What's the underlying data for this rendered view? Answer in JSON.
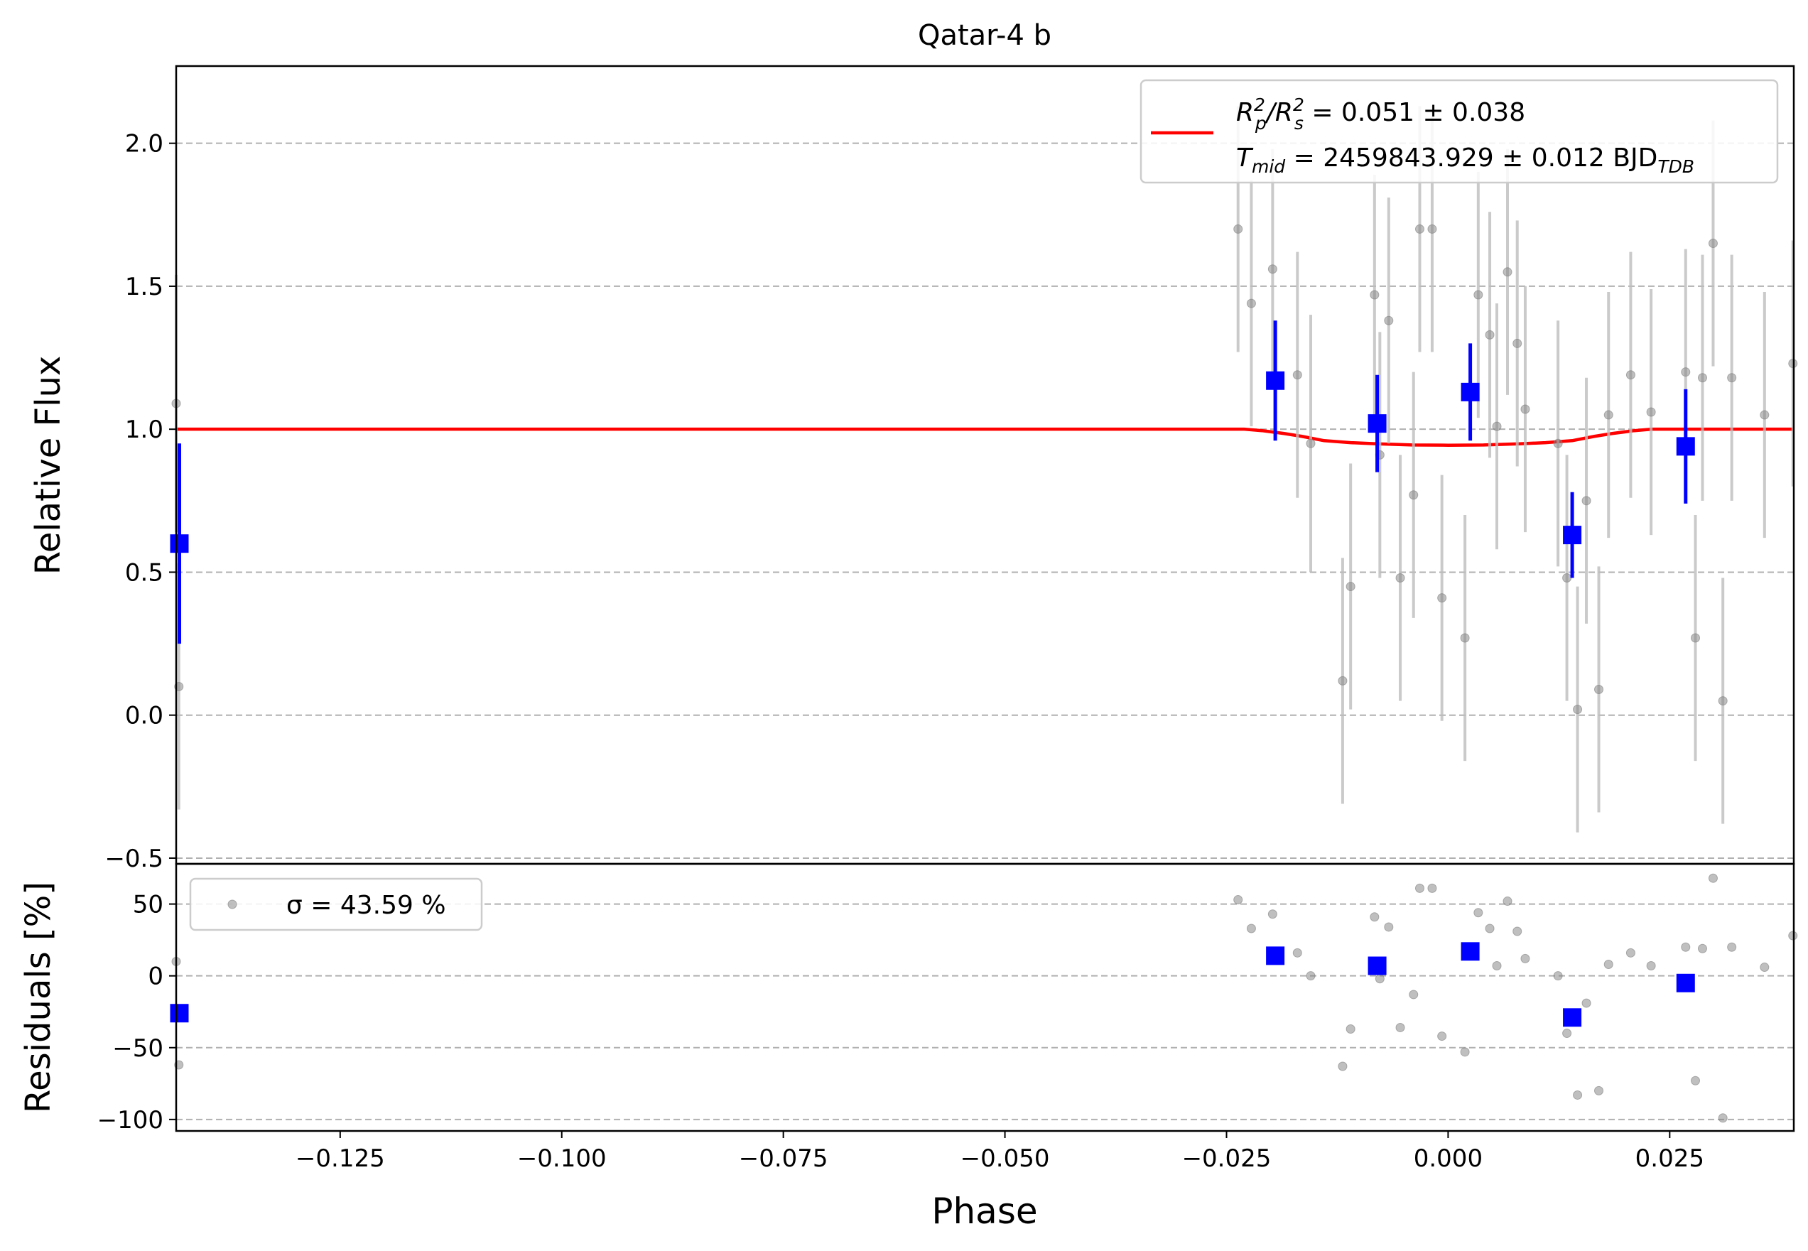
{
  "chart_data": [
    {
      "type": "scatter",
      "title": "Qatar-4 b",
      "xlabel": "",
      "ylabel": "Relative Flux",
      "xlim": [
        -0.1435,
        0.039
      ],
      "ylim": [
        -0.52,
        2.27
      ],
      "yticks": [
        -0.5,
        0.0,
        0.5,
        1.0,
        1.5,
        2.0
      ],
      "ytick_labels": [
        "−0.5",
        "0.0",
        "0.5",
        "1.0",
        "1.5",
        "2.0"
      ],
      "grid": "horizontal dashed",
      "legend_position": "top-right",
      "legend": {
        "line1_parts": [
          "R",
          "p",
          "2",
          "/R",
          "s",
          "2",
          " = 0.051 ± 0.038"
        ],
        "line2_parts": [
          "T",
          "mid",
          " = 2459843.929 ± 0.012 BJD",
          "TDB"
        ]
      },
      "series": [
        {
          "kind": "data",
          "color": "#808080",
          "x": [
            -0.1437,
            -0.1432,
            -0.0237,
            -0.0222,
            -0.0198,
            -0.017,
            -0.0155,
            -0.0119,
            -0.011,
            -0.0083,
            -0.0077,
            -0.0067,
            -0.0054,
            -0.0039,
            -0.0032,
            -0.0018,
            -0.0007,
            0.0019,
            0.0034,
            0.0047,
            0.0055,
            0.0067,
            0.0078,
            0.0087,
            0.0124,
            0.0134,
            0.0146,
            0.0156,
            0.017,
            0.0181,
            0.0206,
            0.0229,
            0.0268,
            0.0279,
            0.0287,
            0.0299,
            0.031,
            0.032,
            0.0357,
            0.0389
          ],
          "y": [
            1.09,
            0.1,
            1.7,
            1.44,
            1.56,
            1.19,
            0.95,
            0.12,
            0.45,
            1.47,
            0.91,
            1.38,
            0.48,
            0.77,
            1.7,
            1.7,
            0.41,
            0.27,
            1.47,
            1.33,
            1.01,
            1.55,
            1.3,
            1.07,
            0.95,
            0.48,
            0.02,
            0.75,
            0.09,
            1.05,
            1.19,
            1.06,
            1.2,
            0.27,
            1.18,
            1.65,
            0.05,
            1.18,
            1.05,
            1.23
          ],
          "yerr": [
            0.45,
            0.43,
            0.43,
            0.43,
            0.42,
            0.43,
            0.45,
            0.43,
            0.43,
            0.42,
            0.43,
            0.43,
            0.43,
            0.43,
            0.43,
            0.43,
            0.43,
            0.43,
            0.43,
            0.43,
            0.43,
            0.43,
            0.43,
            0.43,
            0.43,
            0.43,
            0.43,
            0.43,
            0.43,
            0.43,
            0.43,
            0.43,
            0.43,
            0.43,
            0.43,
            0.43,
            0.43,
            0.43,
            0.43,
            0.43
          ]
        },
        {
          "kind": "binned",
          "color": "#0000ff",
          "x": [
            -0.1433,
            -0.0195,
            -0.008,
            0.0025,
            0.014,
            0.0268
          ],
          "y": [
            0.6,
            1.17,
            1.02,
            1.13,
            0.63,
            0.94
          ],
          "yerr": [
            0.35,
            0.21,
            0.17,
            0.17,
            0.15,
            0.2
          ]
        },
        {
          "kind": "model",
          "color": "#ff0000",
          "x": [
            -0.1435,
            -0.023,
            -0.021,
            -0.0185,
            -0.0165,
            -0.014,
            -0.011,
            -0.008,
            -0.004,
            0.0,
            0.004,
            0.008,
            0.011,
            0.014,
            0.0165,
            0.0185,
            0.021,
            0.023,
            0.039
          ],
          "y": [
            1.0,
            1.0,
            0.995,
            0.985,
            0.975,
            0.96,
            0.953,
            0.949,
            0.945,
            0.944,
            0.945,
            0.949,
            0.953,
            0.96,
            0.975,
            0.985,
            0.995,
            1.0,
            1.0
          ]
        }
      ]
    },
    {
      "type": "scatter",
      "title": "",
      "xlabel": "Phase",
      "ylabel": "Residuals [%]",
      "xlim": [
        -0.1435,
        0.039
      ],
      "ylim": [
        -108,
        78
      ],
      "yticks": [
        -100,
        -50,
        0,
        50
      ],
      "ytick_labels": [
        "−100",
        "−50",
        "0",
        "50"
      ],
      "xticks": [
        -0.125,
        -0.1,
        -0.075,
        -0.05,
        -0.025,
        0.0,
        0.025
      ],
      "xtick_labels": [
        "−0.125",
        "−0.100",
        "−0.075",
        "−0.050",
        "−0.025",
        "0.000",
        "0.025"
      ],
      "grid": "horizontal dashed",
      "legend_position": "top-left",
      "legend": {
        "label": "σ = 43.59 %"
      },
      "series": [
        {
          "kind": "residuals",
          "color": "#808080",
          "x": [
            -0.1437,
            -0.1432,
            -0.0237,
            -0.0222,
            -0.0198,
            -0.017,
            -0.0155,
            -0.0119,
            -0.011,
            -0.0083,
            -0.0077,
            -0.0067,
            -0.0054,
            -0.0039,
            -0.0032,
            -0.0018,
            -0.0007,
            0.0019,
            0.0034,
            0.0047,
            0.0055,
            0.0067,
            0.0078,
            0.0087,
            0.0124,
            0.0134,
            0.0146,
            0.0156,
            0.017,
            0.0181,
            0.0206,
            0.0229,
            0.0268,
            0.0279,
            0.0287,
            0.0299,
            0.031,
            0.032,
            0.0357,
            0.0389
          ],
          "y": [
            10,
            -62,
            53,
            33,
            43,
            16,
            0,
            -63,
            -37,
            41,
            -2,
            34,
            -36,
            -13,
            61,
            61,
            -42,
            -53,
            44,
            33,
            7,
            52,
            31,
            12,
            0,
            -40,
            -83,
            -19,
            -80,
            8,
            16,
            7,
            20,
            -73,
            19,
            68,
            -99,
            20,
            6,
            28
          ]
        },
        {
          "kind": "binned",
          "color": "#0000ff",
          "x": [
            -0.1433,
            -0.0195,
            -0.008,
            0.0025,
            0.014,
            0.0268
          ],
          "y": [
            -26,
            14,
            7,
            17,
            -29,
            -5
          ]
        }
      ]
    }
  ]
}
